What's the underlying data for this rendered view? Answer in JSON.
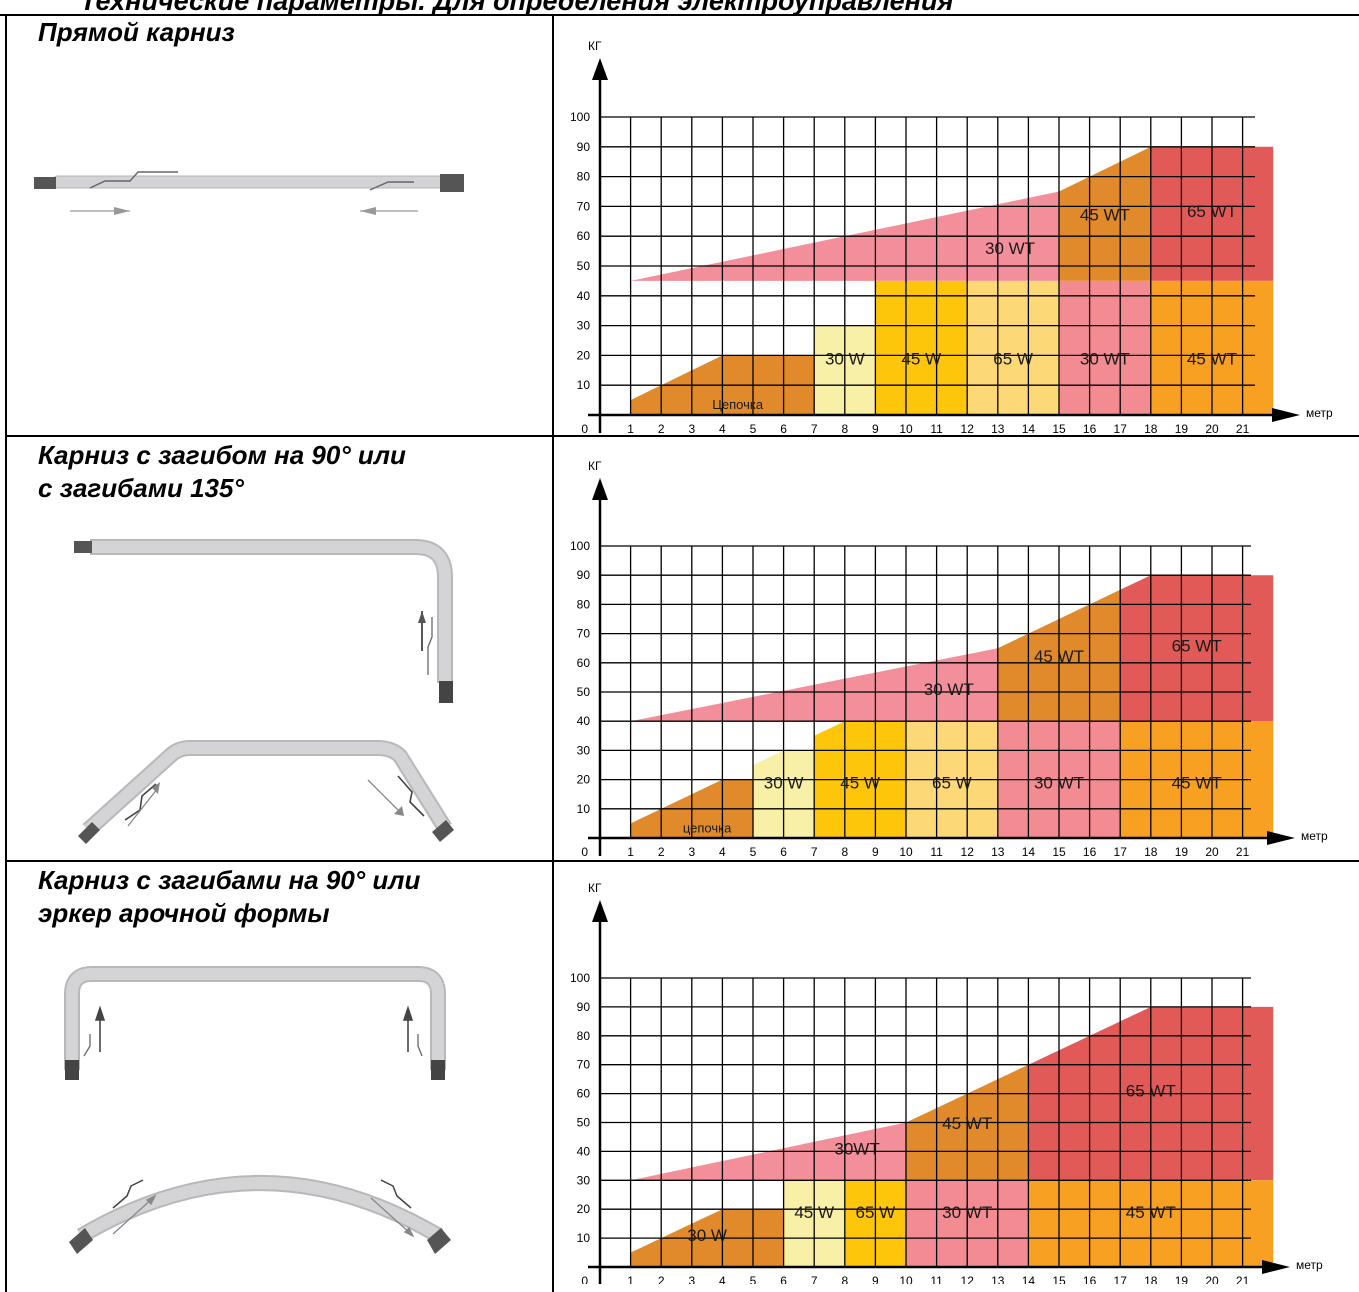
{
  "page": {
    "title": "Технические параметры. Для определения электроуправления"
  },
  "rows": [
    {
      "heading": "Прямой карниз",
      "illustration": "straight-rod-icon"
    },
    {
      "heading": "Карниз с загибом на 90° или\nс загибами 135°",
      "illustration": "bent-rod-90-135-icon"
    },
    {
      "heading": "Карниз с загибами на 90° или\nэркер арочной формы",
      "illustration": "bent-rod-90-bay-arch-icon"
    }
  ],
  "colors": {
    "chain": "#e08a2b",
    "w30": "#f8f0a6",
    "w45": "#fdc60b",
    "w65": "#fdd877",
    "wt30_low": "#f28c92",
    "wt45_low": "#f7a022",
    "wt30_high": "#f28f9b",
    "wt45_high": "#e08a2b",
    "wt65_high": "#e15a57"
  },
  "chart_data": [
    {
      "type": "area",
      "ylabel": "КГ",
      "xlabel": "метр",
      "y_ticks": [
        0,
        10,
        20,
        30,
        40,
        50,
        60,
        70,
        80,
        90,
        100
      ],
      "x_ticks": [
        1,
        2,
        3,
        4,
        5,
        6,
        7,
        8,
        9,
        10,
        11,
        12,
        13,
        14,
        15,
        16,
        17,
        18,
        19,
        20,
        21
      ],
      "xlim": [
        0,
        22
      ],
      "ylim": [
        0,
        100
      ],
      "capacity_line": [
        [
          1,
          5
        ],
        [
          18,
          90
        ],
        [
          22,
          90
        ]
      ],
      "zones": [
        {
          "label": "Цепочка",
          "x_from": 1,
          "x_to": 7,
          "y_max": 20,
          "color_key": "chain"
        },
        {
          "label": "30 W",
          "x_from": 7,
          "x_to": 9,
          "y_max": 30,
          "color_key": "w30"
        },
        {
          "label": "45 W",
          "x_from": 9,
          "x_to": 12,
          "y_max": 45,
          "color_key": "w45"
        },
        {
          "label": "65 W",
          "x_from": 12,
          "x_to": 15,
          "y_max": 45,
          "color_key": "w65"
        },
        {
          "label": "30 WT",
          "x_from": 15,
          "x_to": 18,
          "y_max": 45,
          "color_key": "wt30_low"
        },
        {
          "label": "45 WT",
          "x_from": 18,
          "x_to": 22,
          "y_max": 45,
          "color_key": "wt45_low"
        },
        {
          "label": "30 WT",
          "x_from": 1,
          "x_to": 15,
          "y_max": 100,
          "color_key": "wt30_high",
          "band": "upper"
        },
        {
          "label": "45 WT",
          "x_from": 15,
          "x_to": 18,
          "y_max": 100,
          "color_key": "wt45_high",
          "band": "upper"
        },
        {
          "label": "65 WT",
          "x_from": 18,
          "x_to": 22,
          "y_max": 100,
          "color_key": "wt65_high",
          "band": "upper"
        }
      ],
      "split_level": 45
    },
    {
      "type": "area",
      "ylabel": "КГ",
      "xlabel": "метр",
      "y_ticks": [
        0,
        10,
        20,
        30,
        40,
        50,
        60,
        70,
        80,
        90,
        100
      ],
      "x_ticks": [
        1,
        2,
        3,
        4,
        5,
        6,
        7,
        8,
        9,
        10,
        11,
        12,
        13,
        14,
        15,
        16,
        17,
        18,
        19,
        20,
        21
      ],
      "xlim": [
        0,
        22
      ],
      "ylim": [
        0,
        100
      ],
      "capacity_line": [
        [
          1,
          5
        ],
        [
          18,
          90
        ],
        [
          22,
          90
        ]
      ],
      "zones": [
        {
          "label": "цепочка",
          "x_from": 1,
          "x_to": 5,
          "y_max": 20,
          "color_key": "chain"
        },
        {
          "label": "30 W",
          "x_from": 5,
          "x_to": 7,
          "y_max": 30,
          "color_key": "w30"
        },
        {
          "label": "45 W",
          "x_from": 7,
          "x_to": 10,
          "y_max": 40,
          "color_key": "w45"
        },
        {
          "label": "65 W",
          "x_from": 10,
          "x_to": 13,
          "y_max": 40,
          "color_key": "w65"
        },
        {
          "label": "30 WT",
          "x_from": 13,
          "x_to": 17,
          "y_max": 40,
          "color_key": "wt30_low"
        },
        {
          "label": "45 WT",
          "x_from": 17,
          "x_to": 22,
          "y_max": 40,
          "color_key": "wt45_low"
        },
        {
          "label": "30 WT",
          "x_from": 1,
          "x_to": 13,
          "y_max": 100,
          "color_key": "wt30_high",
          "band": "upper"
        },
        {
          "label": "45 WT",
          "x_from": 13,
          "x_to": 17,
          "y_max": 100,
          "color_key": "wt45_high",
          "band": "upper"
        },
        {
          "label": "65 WT",
          "x_from": 17,
          "x_to": 22,
          "y_max": 100,
          "color_key": "wt65_high",
          "band": "upper"
        }
      ],
      "split_level": 40
    },
    {
      "type": "area",
      "ylabel": "КГ",
      "xlabel": "метр",
      "y_ticks": [
        0,
        10,
        20,
        30,
        40,
        50,
        60,
        70,
        80,
        90,
        100
      ],
      "x_ticks": [
        1,
        2,
        3,
        4,
        5,
        6,
        7,
        8,
        9,
        10,
        11,
        12,
        13,
        14,
        15,
        16,
        17,
        18,
        19,
        20,
        21
      ],
      "xlim": [
        0,
        22
      ],
      "ylim": [
        0,
        100
      ],
      "capacity_line": [
        [
          1,
          5
        ],
        [
          18,
          90
        ],
        [
          22,
          90
        ]
      ],
      "zones": [
        {
          "label": "30 W",
          "x_from": 1,
          "x_to": 6,
          "y_max": 20,
          "color_key": "chain"
        },
        {
          "label": "45 W",
          "x_from": 6,
          "x_to": 8,
          "y_max": 30,
          "color_key": "w30"
        },
        {
          "label": "65 W",
          "x_from": 8,
          "x_to": 10,
          "y_max": 30,
          "color_key": "w45"
        },
        {
          "label": "30 WT",
          "x_from": 10,
          "x_to": 14,
          "y_max": 30,
          "color_key": "wt30_low"
        },
        {
          "label": "45 WT",
          "x_from": 14,
          "x_to": 22,
          "y_max": 30,
          "color_key": "wt45_low"
        },
        {
          "label": "30WT",
          "x_from": 1,
          "x_to": 10,
          "y_max": 100,
          "color_key": "wt30_high",
          "band": "upper"
        },
        {
          "label": "45 WT",
          "x_from": 10,
          "x_to": 14,
          "y_max": 100,
          "color_key": "wt45_high",
          "band": "upper"
        },
        {
          "label": "65 WT",
          "x_from": 14,
          "x_to": 22,
          "y_max": 100,
          "color_key": "wt65_high",
          "band": "upper"
        }
      ],
      "split_level": 30
    }
  ]
}
